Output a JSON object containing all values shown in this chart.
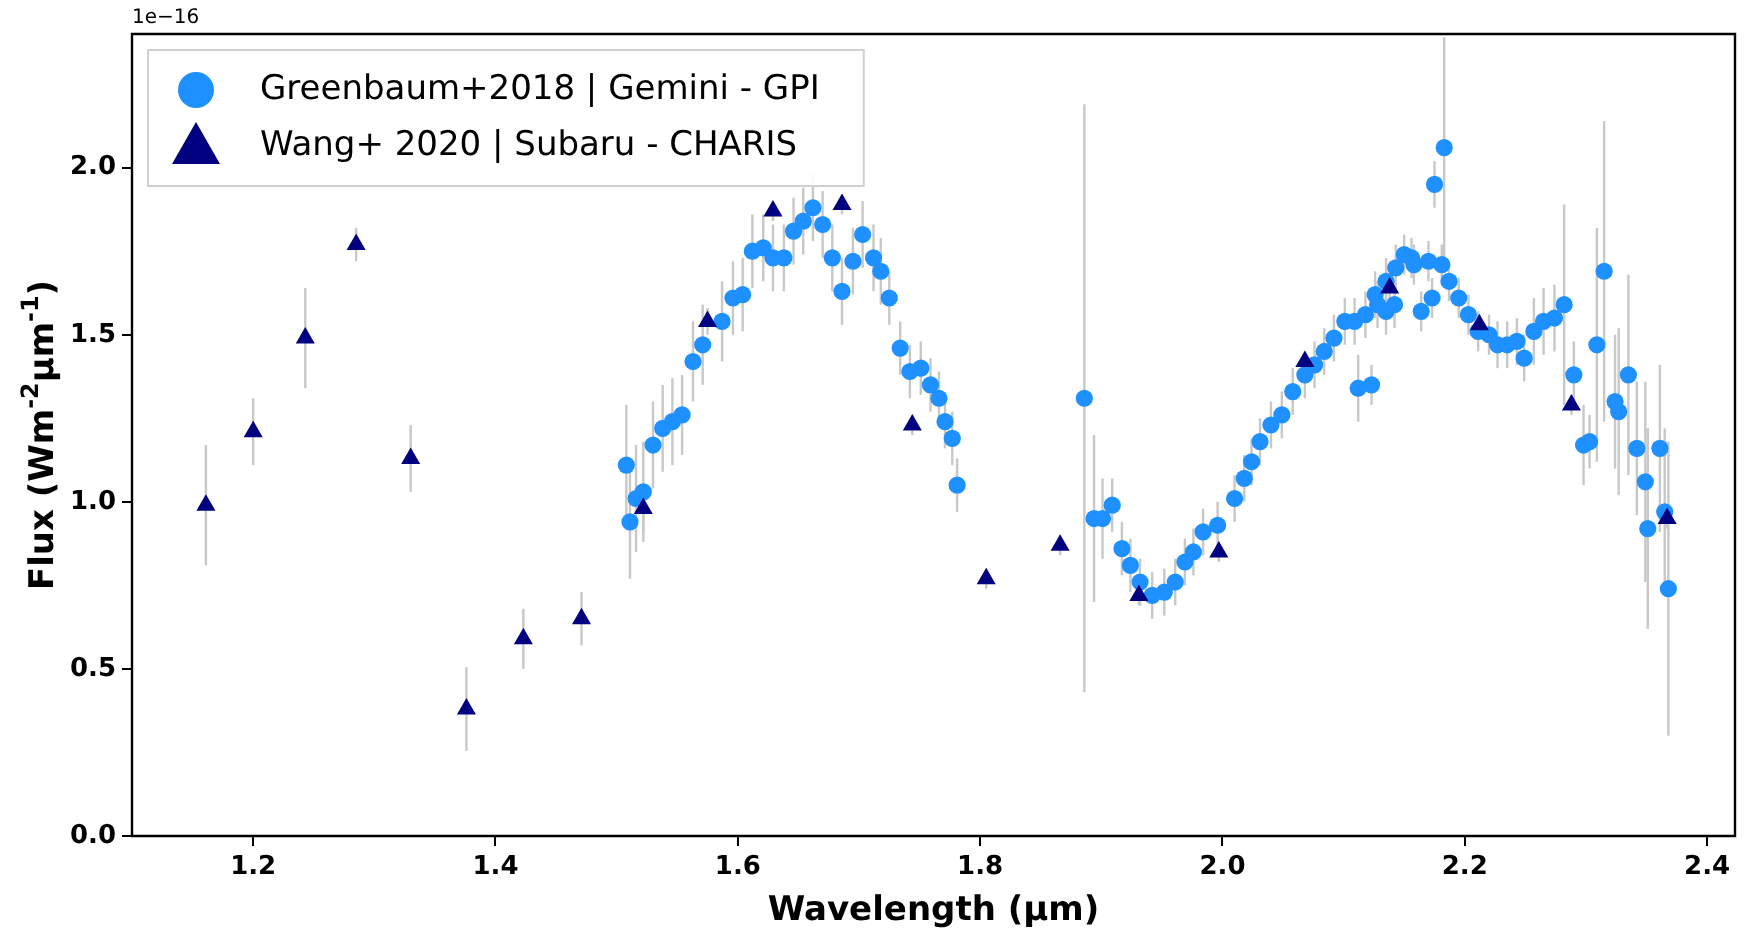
{
  "chart_data": {
    "type": "scatter",
    "xlabel": "Wavelength (µm)",
    "ylabel": "Flux (Wm$^{-2}$µm$^{-1}$)",
    "annotations": [
      "1e−16"
    ],
    "xlim": [
      1.1,
      2.423
    ],
    "xticks": [
      1.2,
      1.4,
      1.6,
      1.8,
      {
        "value": 2,
        "label": "2.0"
      },
      2.2,
      2.4
    ],
    "ylim": [
      0,
      2.4
    ],
    "yticks": [
      {
        "value": 0,
        "label": "0.0"
      },
      0.5,
      {
        "value": 1,
        "label": "1.0"
      },
      1.5,
      {
        "value": 2,
        "label": "2.0"
      }
    ],
    "grid": false,
    "legend": "top left",
    "series": [
      {
        "name": "Greenbaum+2018 | Gemini - GPI",
        "color": "#1e90ff",
        "marker": "circle",
        "x": [
          1.508,
          1.511,
          1.516,
          1.522,
          1.53,
          1.538,
          1.546,
          1.554,
          1.563,
          1.571,
          1.587,
          1.596,
          1.604,
          1.612,
          1.621,
          1.629,
          1.638,
          1.646,
          1.654,
          1.662,
          1.67,
          1.678,
          1.686,
          1.695,
          1.703,
          1.712,
          1.718,
          1.725,
          1.734,
          1.742,
          1.751,
          1.759,
          1.766,
          1.771,
          1.777,
          1.781,
          1.886,
          1.894,
          1.901,
          1.909,
          1.917,
          1.924,
          1.932,
          1.942,
          1.952,
          1.961,
          1.969,
          1.976,
          1.984,
          1.996,
          2.01,
          2.018,
          2.024,
          2.031,
          2.04,
          2.049,
          2.058,
          2.068,
          2.076,
          2.084,
          2.092,
          2.101,
          2.109,
          2.112,
          2.118,
          2.123,
          2.126,
          2.128,
          2.135,
          2.135,
          2.142,
          2.143,
          2.15,
          2.156,
          2.158,
          2.164,
          2.17,
          2.173,
          2.175,
          2.181,
          2.183,
          2.187,
          2.195,
          2.203,
          2.211,
          2.22,
          2.227,
          2.235,
          2.243,
          2.249,
          2.257,
          2.265,
          2.274,
          2.282,
          2.29,
          2.298,
          2.303,
          2.309,
          2.315,
          2.324,
          2.327,
          2.335,
          2.342,
          2.349,
          2.351,
          2.361,
          2.365,
          2.368
        ],
        "values": [
          1.11,
          0.94,
          1.01,
          1.03,
          1.17,
          1.22,
          1.24,
          1.26,
          1.42,
          1.47,
          1.54,
          1.61,
          1.62,
          1.75,
          1.76,
          1.73,
          1.73,
          1.81,
          1.84,
          1.88,
          1.83,
          1.73,
          1.63,
          1.72,
          1.8,
          1.73,
          1.69,
          1.61,
          1.46,
          1.39,
          1.4,
          1.35,
          1.31,
          1.24,
          1.19,
          1.05,
          1.31,
          0.95,
          0.95,
          0.99,
          0.86,
          0.81,
          0.76,
          0.72,
          0.73,
          0.76,
          0.82,
          0.85,
          0.91,
          0.93,
          1.01,
          1.07,
          1.12,
          1.18,
          1.23,
          1.26,
          1.33,
          1.38,
          1.41,
          1.45,
          1.49,
          1.54,
          1.54,
          1.34,
          1.56,
          1.35,
          1.62,
          1.59,
          1.66,
          1.57,
          1.59,
          1.7,
          1.74,
          1.73,
          1.71,
          1.57,
          1.72,
          1.61,
          1.95,
          1.71,
          2.06,
          1.66,
          1.61,
          1.56,
          1.51,
          1.5,
          1.47,
          1.47,
          1.48,
          1.43,
          1.51,
          1.54,
          1.55,
          1.59,
          1.38,
          1.17,
          1.18,
          1.47,
          1.69,
          1.3,
          1.27,
          1.38,
          1.16,
          1.06,
          0.92,
          1.16,
          0.97,
          0.74
        ],
        "errors": [
          0.18,
          0.17,
          0.16,
          0.15,
          0.13,
          0.13,
          0.13,
          0.12,
          0.12,
          0.12,
          0.12,
          0.11,
          0.11,
          0.11,
          0.1,
          0.1,
          0.1,
          0.1,
          0.1,
          0.1,
          0.1,
          0.1,
          0.1,
          0.1,
          0.1,
          0.1,
          0.1,
          0.08,
          0.08,
          0.08,
          0.08,
          0.08,
          0.08,
          0.08,
          0.08,
          0.08,
          0.88,
          0.25,
          0.12,
          0.08,
          0.08,
          0.08,
          0.07,
          0.07,
          0.07,
          0.07,
          0.07,
          0.07,
          0.07,
          0.07,
          0.07,
          0.07,
          0.07,
          0.07,
          0.07,
          0.07,
          0.07,
          0.07,
          0.07,
          0.07,
          0.07,
          0.07,
          0.07,
          0.1,
          0.07,
          0.06,
          0.07,
          0.07,
          0.07,
          0.07,
          0.07,
          0.07,
          0.06,
          0.06,
          0.06,
          0.06,
          0.06,
          0.06,
          0.07,
          0.06,
          0.33,
          0.06,
          0.06,
          0.06,
          0.06,
          0.06,
          0.07,
          0.07,
          0.07,
          0.07,
          0.1,
          0.1,
          0.1,
          0.3,
          0.1,
          0.12,
          0.08,
          0.35,
          0.45,
          0.2,
          0.25,
          0.3,
          0.2,
          0.3,
          0.3,
          0.25,
          0.25,
          0.44
        ]
      },
      {
        "name": "Wang+ 2020 | Subaru - CHARIS",
        "color": "#000080",
        "marker": "triangle",
        "x": [
          1.161,
          1.2,
          1.243,
          1.285,
          1.33,
          1.376,
          1.423,
          1.471,
          1.522,
          1.575,
          1.629,
          1.686,
          1.744,
          1.805,
          1.866,
          1.931,
          1.997,
          2.068,
          2.138,
          2.212,
          2.288,
          2.367
        ],
        "values": [
          0.99,
          1.21,
          1.49,
          1.77,
          1.13,
          0.38,
          0.59,
          0.65,
          0.98,
          1.54,
          1.87,
          1.89,
          1.23,
          0.77,
          0.87,
          0.72,
          0.85,
          1.42,
          1.64,
          1.53,
          1.29,
          0.95
        ],
        "errors": [
          0.18,
          0.1,
          0.15,
          0.05,
          0.1,
          0.125,
          0.09,
          0.08,
          0.07,
          0.04,
          0.03,
          0.03,
          0.03,
          0.03,
          0.03,
          0.03,
          0.03,
          0.03,
          0.03,
          0.03,
          0.03,
          0.03
        ]
      }
    ]
  }
}
